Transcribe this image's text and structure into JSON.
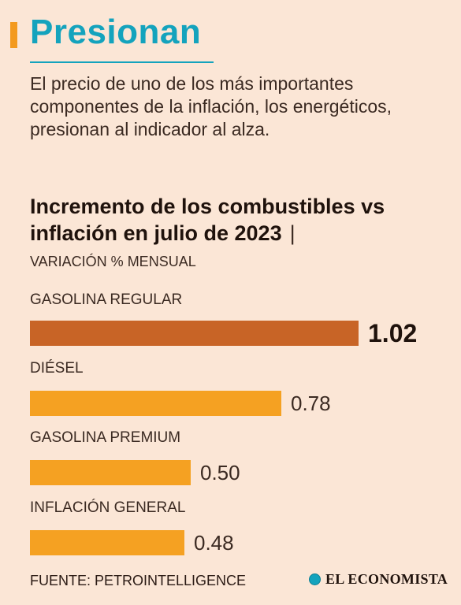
{
  "title": "Presionan",
  "intro": "El precio de uno de los más importantes componentes de la inflación, los energéticos, presionan al indicador al alza.",
  "chart_data": {
    "type": "bar",
    "title": "Incremento de los combustibles vs inflación en julio de 2023",
    "title_separator": "|",
    "subtitle": "VARIACIÓN % MENSUAL",
    "categories": [
      "GASOLINA REGULAR",
      "DIÉSEL",
      "GASOLINA PREMIUM",
      "INFLACIÓN GENERAL"
    ],
    "values": [
      1.02,
      0.78,
      0.5,
      0.48
    ],
    "value_labels": [
      "1.02",
      "0.78",
      "0.50",
      "0.48"
    ],
    "highlight_index": 0,
    "colors": {
      "highlight": "#c86426",
      "default": "#f5a122"
    },
    "orientation": "horizontal",
    "xlim": [
      0,
      1.02
    ],
    "grid": false
  },
  "source": "FUENTE: PETROINTELLIGENCE",
  "brand": {
    "name": "EL ECONOMISTA",
    "icon": "globe-icon"
  }
}
